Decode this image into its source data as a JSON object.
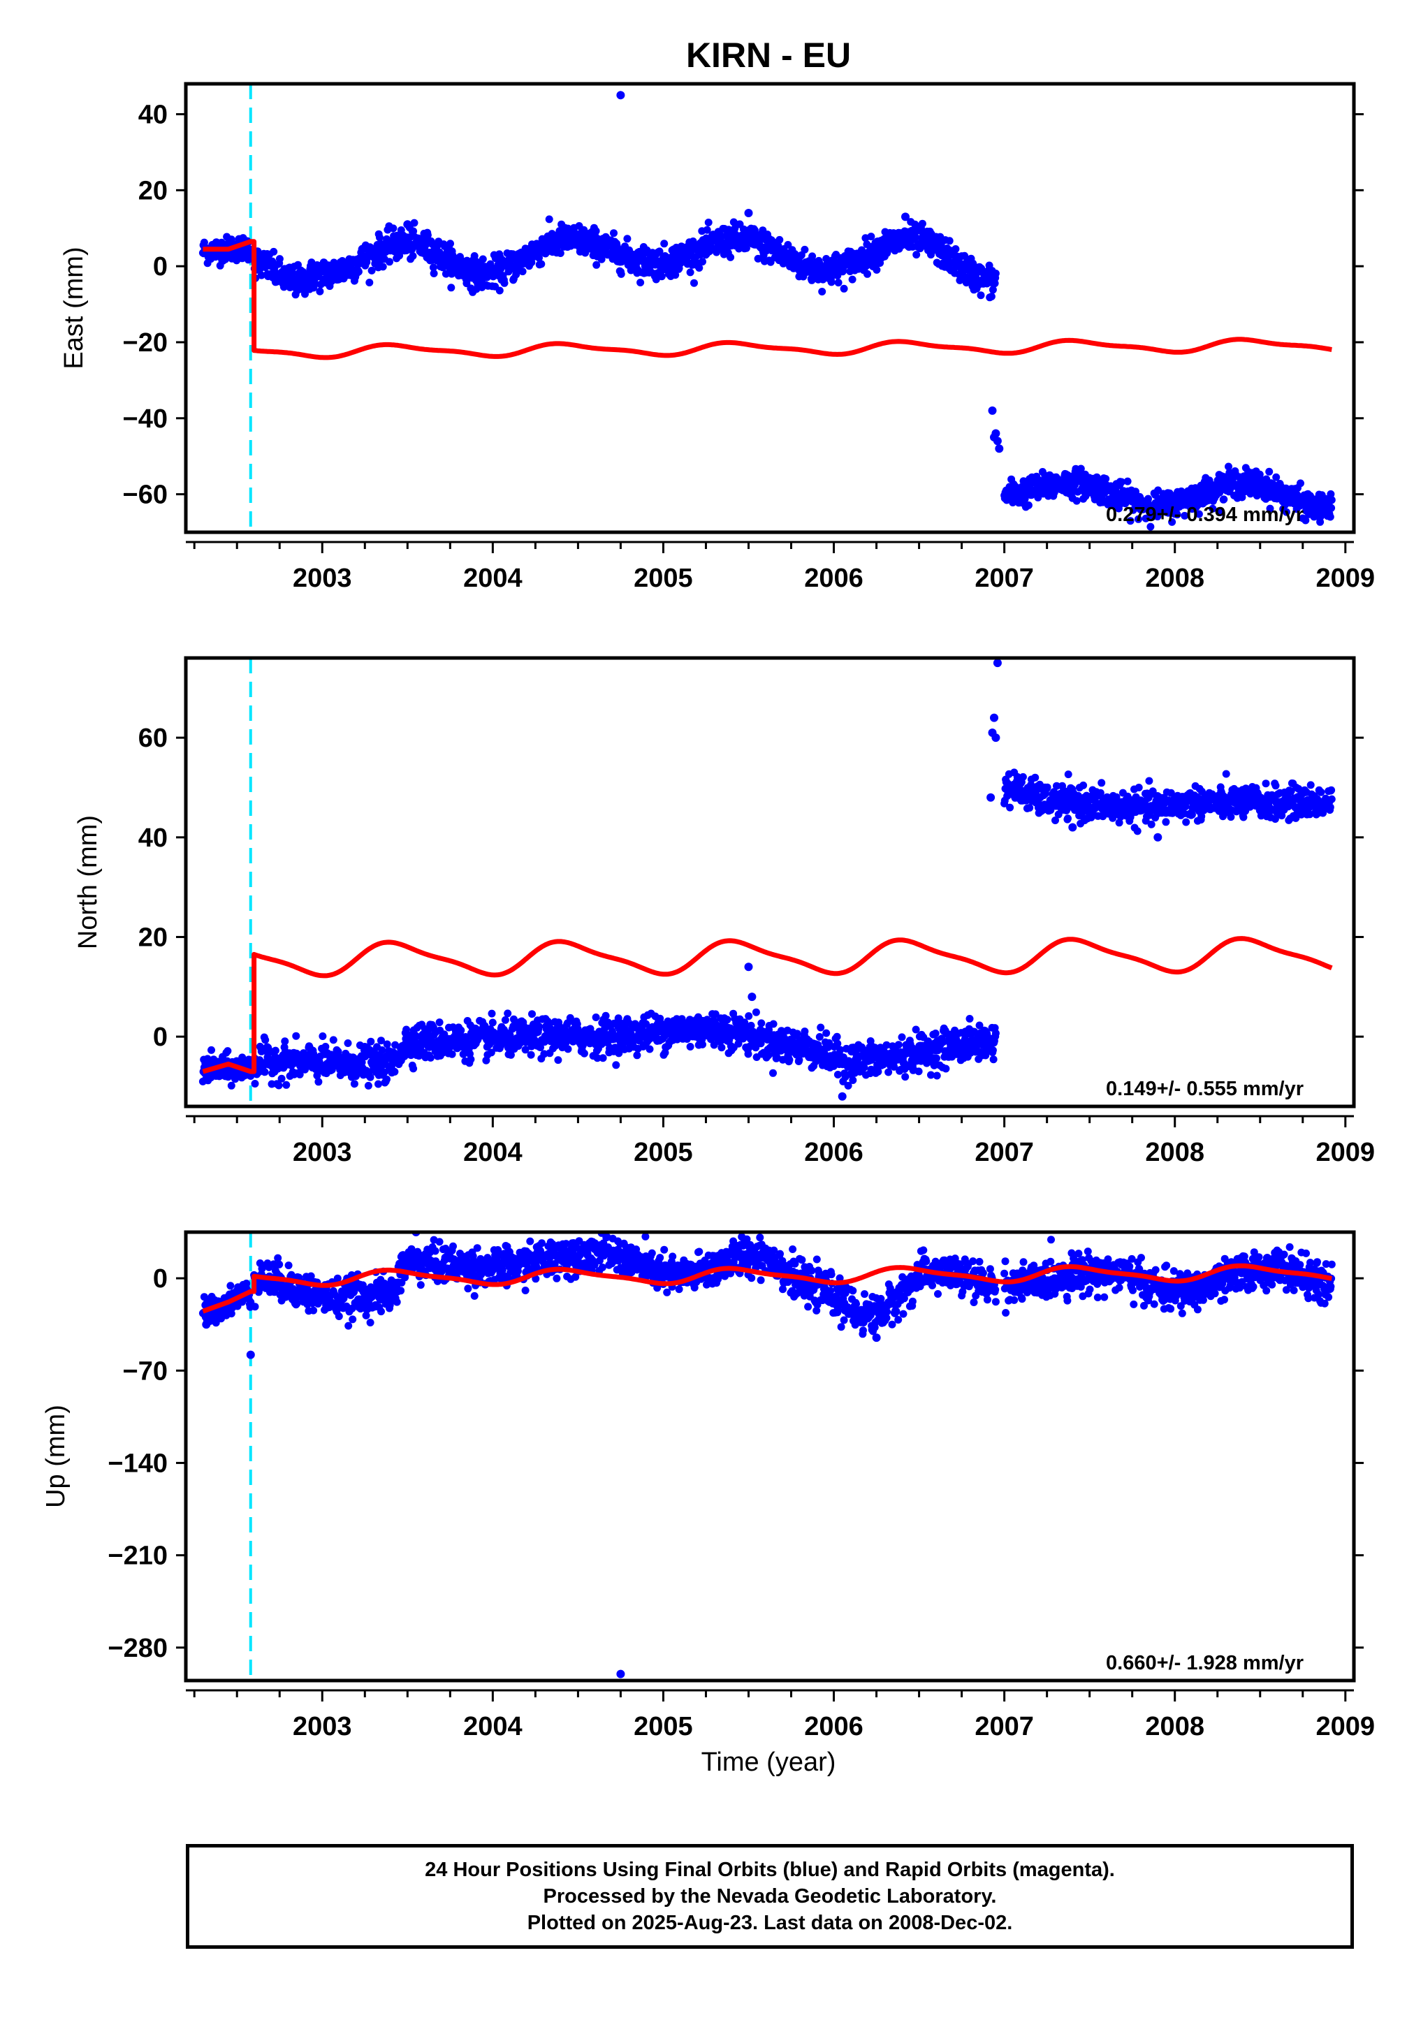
{
  "title": "KIRN - EU",
  "xlabel": "Time (year)",
  "caption": [
    "24 Hour Positions Using Final Orbits (blue) and Rapid Orbits (magenta).",
    "Processed by the Nevada Geodetic Laboratory.",
    "Plotted on 2025-Aug-23. Last data on 2008-Dec-02."
  ],
  "colors": {
    "final_orbits": "#0000ff",
    "model_fit": "#ff0000",
    "event_line": "#00e5ff",
    "frame": "#000000"
  },
  "chart_data": [
    {
      "type": "scatter",
      "component": "east",
      "ylabel": "East (mm)",
      "xlim": [
        2002.2,
        2009.05
      ],
      "ylim": [
        -70,
        48
      ],
      "xticks": [
        2003,
        2004,
        2005,
        2006,
        2007,
        2008,
        2009
      ],
      "yticks": [
        40,
        20,
        0,
        -20,
        -40,
        -60
      ],
      "event_line_x": 2002.58,
      "rate_label": "0.279+/- 0.394 mm/yr",
      "points": {
        "segments": [
          {
            "x": [
              2002.3,
              2002.58
            ],
            "base": [
              4,
              5
            ],
            "noise": 1.6
          },
          {
            "x": [
              2002.6,
              2006.95
            ],
            "base_knots": [
              [
                2002.6,
                1
              ],
              [
                2002.85,
                -4
              ],
              [
                2003.0,
                -2
              ],
              [
                2003.5,
                6
              ],
              [
                2003.95,
                -2
              ],
              [
                2004.45,
                7
              ],
              [
                2004.95,
                1
              ],
              [
                2005.45,
                7
              ],
              [
                2005.95,
                -1
              ],
              [
                2006.45,
                7
              ],
              [
                2006.95,
                -4
              ]
            ],
            "noise": 2.0
          },
          {
            "x": [
              2007.0,
              2008.92
            ],
            "base_knots": [
              [
                2007.0,
                -60
              ],
              [
                2007.4,
                -57
              ],
              [
                2007.9,
                -63
              ],
              [
                2008.4,
                -57
              ],
              [
                2008.92,
                -64
              ]
            ],
            "noise": 1.8
          }
        ],
        "outliers": [
          [
            2004.75,
            45
          ],
          [
            2006.93,
            -38
          ],
          [
            2006.95,
            -44
          ],
          [
            2006.96,
            -46
          ],
          [
            2006.97,
            -48
          ],
          [
            2006.94,
            -45
          ],
          [
            2005.5,
            14
          ],
          [
            2006.42,
            13
          ],
          [
            2003.5,
            11
          ]
        ]
      },
      "model": {
        "x_start": 2002.3,
        "x_end": 2008.92,
        "step_x": 2002.6,
        "pre_step": [
          [
            2002.3,
            4.5
          ],
          [
            2002.45,
            4.5
          ],
          [
            2002.58,
            6.5
          ]
        ],
        "post_offset": -22.5,
        "trend": 0.279,
        "annual_amp": 1.4,
        "semiannual_amp": 0.5
      }
    },
    {
      "type": "scatter",
      "component": "north",
      "ylabel": "North (mm)",
      "xlim": [
        2002.2,
        2009.05
      ],
      "ylim": [
        -14,
        76
      ],
      "xticks": [
        2003,
        2004,
        2005,
        2006,
        2007,
        2008,
        2009
      ],
      "yticks": [
        60,
        40,
        20,
        0
      ],
      "event_line_x": 2002.58,
      "rate_label": "0.149+/- 0.555 mm/yr",
      "points": {
        "segments": [
          {
            "x": [
              2002.3,
              2002.58
            ],
            "base": [
              -6.5,
              -6.5
            ],
            "noise": 1.4
          },
          {
            "x": [
              2002.6,
              2006.95
            ],
            "base_knots": [
              [
                2002.6,
                -5
              ],
              [
                2003.4,
                -5.5
              ],
              [
                2003.5,
                -1
              ],
              [
                2004.5,
                0
              ],
              [
                2005.3,
                1.5
              ],
              [
                2005.8,
                -2
              ],
              [
                2006.1,
                -5
              ],
              [
                2006.95,
                -1
              ]
            ],
            "noise": 1.8
          },
          {
            "x": [
              2007.0,
              2008.92
            ],
            "base_knots": [
              [
                2007.0,
                50
              ],
              [
                2007.3,
                47
              ],
              [
                2007.8,
                46
              ],
              [
                2008.2,
                47
              ],
              [
                2008.92,
                47
              ]
            ],
            "noise": 1.6
          }
        ],
        "outliers": [
          [
            2006.96,
            75
          ],
          [
            2006.94,
            64
          ],
          [
            2006.93,
            61
          ],
          [
            2006.95,
            60
          ],
          [
            2006.92,
            48
          ],
          [
            2005.5,
            14
          ],
          [
            2005.52,
            8
          ],
          [
            2006.05,
            -12
          ],
          [
            2007.4,
            42
          ],
          [
            2007.9,
            40
          ]
        ]
      },
      "model": {
        "x_start": 2002.3,
        "x_end": 2008.92,
        "step_x": 2002.6,
        "pre_step": [
          [
            2002.3,
            -7
          ],
          [
            2002.45,
            -5.5
          ],
          [
            2002.58,
            -7
          ]
        ],
        "post_offset": 15.5,
        "trend": 0.149,
        "annual_amp": 3.0,
        "semiannual_amp": 0.8
      }
    },
    {
      "type": "scatter",
      "component": "up",
      "ylabel": "Up (mm)",
      "xlim": [
        2002.2,
        2009.05
      ],
      "ylim": [
        -305,
        35
      ],
      "xticks": [
        2003,
        2004,
        2005,
        2006,
        2007,
        2008,
        2009
      ],
      "yticks": [
        0,
        -70,
        -140,
        -210,
        -280
      ],
      "event_line_x": 2002.58,
      "rate_label": "0.660+/- 1.928 mm/yr",
      "points": {
        "segments": [
          {
            "x": [
              2002.3,
              2002.58
            ],
            "base_knots": [
              [
                2002.3,
                -25
              ],
              [
                2002.58,
                -12
              ]
            ],
            "noise": 5
          },
          {
            "x": [
              2002.6,
              2006.95
            ],
            "base_knots": [
              [
                2002.6,
                0
              ],
              [
                2003.1,
                -15
              ],
              [
                2003.4,
                -12
              ],
              [
                2003.5,
                12
              ],
              [
                2004.0,
                8
              ],
              [
                2004.6,
                20
              ],
              [
                2005.1,
                2
              ],
              [
                2005.55,
                18
              ],
              [
                2005.9,
                -8
              ],
              [
                2006.2,
                -28
              ],
              [
                2006.6,
                5
              ],
              [
                2006.95,
                -5
              ]
            ],
            "noise": 7
          },
          {
            "x": [
              2007.0,
              2008.92
            ],
            "base_knots": [
              [
                2007.0,
                -5
              ],
              [
                2007.6,
                5
              ],
              [
                2008.0,
                -10
              ],
              [
                2008.6,
                8
              ],
              [
                2008.92,
                -5
              ]
            ],
            "noise": 7
          }
        ],
        "outliers": [
          [
            2004.75,
            -300
          ],
          [
            2002.58,
            -58
          ],
          [
            2002.32,
            -35
          ],
          [
            2006.25,
            -45
          ],
          [
            2005.55,
            38
          ],
          [
            2003.55,
            35
          ]
        ]
      },
      "model": {
        "x_start": 2002.3,
        "x_end": 2008.92,
        "step_x": 2002.6,
        "pre_step": [
          [
            2002.3,
            -25
          ],
          [
            2002.45,
            -18
          ],
          [
            2002.58,
            -10
          ]
        ],
        "post_offset": 0,
        "trend": 0.66,
        "annual_amp": 5.0,
        "semiannual_amp": 1.5
      }
    }
  ]
}
